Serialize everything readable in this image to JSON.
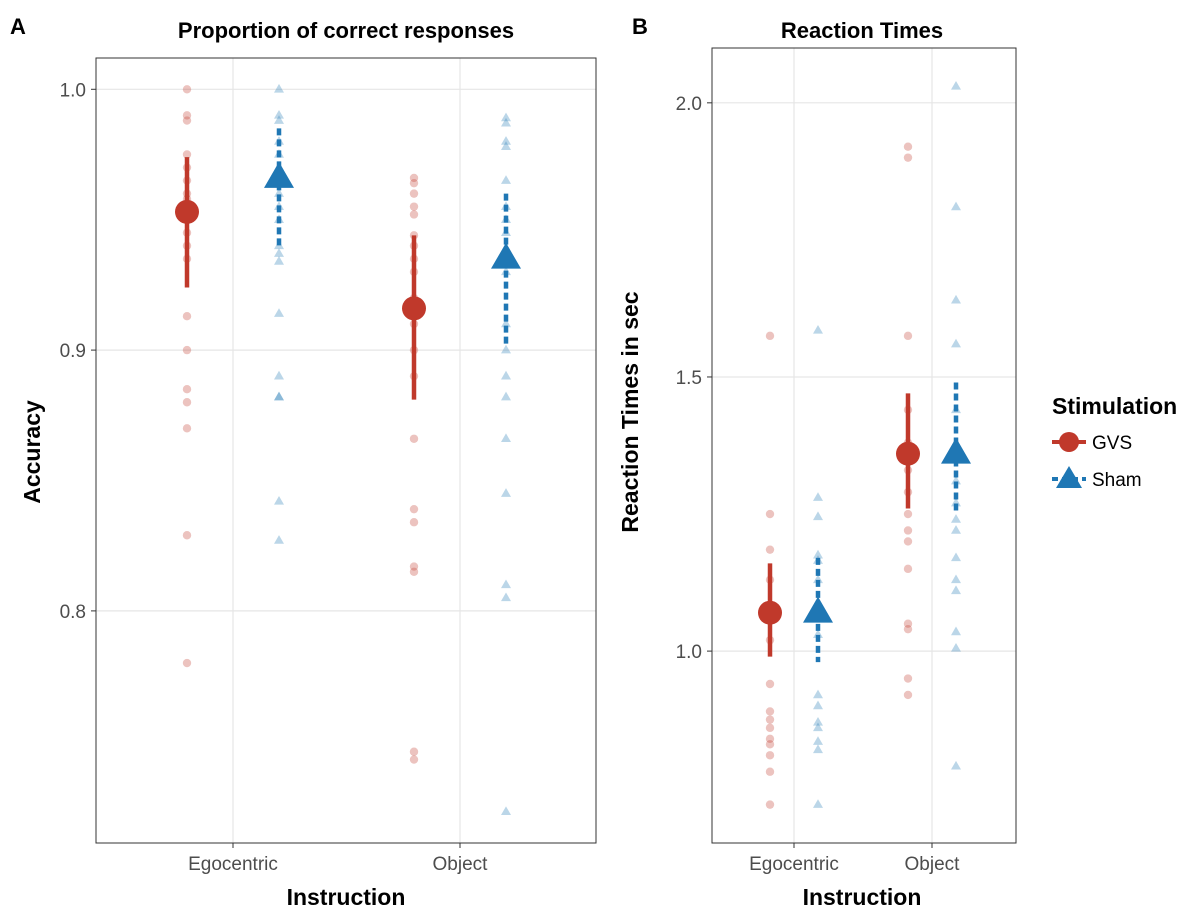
{
  "colors": {
    "gvs": "#c0392b",
    "sham": "#1f77b4",
    "grid": "#e6e6e6",
    "frame": "#333333"
  },
  "legend": {
    "title": "Stimulation",
    "items": [
      {
        "label": "GVS",
        "shape": "circle",
        "line": "solid"
      },
      {
        "label": "Sham",
        "shape": "triangle",
        "line": "dashed"
      }
    ]
  },
  "chart_data": [
    {
      "panel": "A",
      "title": "Proportion of correct responses",
      "type": "scatter",
      "xlabel": "Instruction",
      "ylabel": "Accuracy",
      "categories": [
        "Egocentric",
        "Object"
      ],
      "ylim": [
        0.711,
        1.012
      ],
      "yticks": [
        0.8,
        0.9,
        1.0
      ],
      "ytick_labels": [
        "0.8",
        "0.9",
        "1.0"
      ],
      "grid": true,
      "series": [
        {
          "name": "GVS",
          "summary": [
            {
              "category": "Egocentric",
              "mean": 0.953,
              "lower": 0.924,
              "upper": 0.974
            },
            {
              "category": "Object",
              "mean": 0.916,
              "lower": 0.881,
              "upper": 0.944
            }
          ],
          "points": [
            {
              "category": "Egocentric",
              "values": [
                1.0,
                0.99,
                0.988,
                0.975,
                0.97,
                0.965,
                0.96,
                0.958,
                0.955,
                0.95,
                0.945,
                0.94,
                0.935,
                0.913,
                0.9,
                0.885,
                0.88,
                0.87,
                0.829,
                0.78
              ]
            },
            {
              "category": "Object",
              "values": [
                0.966,
                0.964,
                0.96,
                0.955,
                0.952,
                0.944,
                0.94,
                0.935,
                0.93,
                0.92,
                0.91,
                0.9,
                0.89,
                0.866,
                0.839,
                0.834,
                0.817,
                0.815,
                0.746,
                0.743
              ]
            }
          ]
        },
        {
          "name": "Sham",
          "summary": [
            {
              "category": "Egocentric",
              "mean": 0.966,
              "lower": 0.94,
              "upper": 0.985
            },
            {
              "category": "Object",
              "mean": 0.935,
              "lower": 0.901,
              "upper": 0.96
            }
          ],
          "points": [
            {
              "category": "Egocentric",
              "values": [
                1.0,
                0.99,
                0.988,
                0.98,
                0.975,
                0.97,
                0.965,
                0.96,
                0.955,
                0.95,
                0.94,
                0.937,
                0.934,
                0.914,
                0.89,
                0.882,
                0.882,
                0.842,
                0.827
              ]
            },
            {
              "category": "Object",
              "values": [
                0.989,
                0.987,
                0.98,
                0.978,
                0.965,
                0.955,
                0.95,
                0.945,
                0.93,
                0.91,
                0.9,
                0.89,
                0.882,
                0.866,
                0.845,
                0.81,
                0.805,
                0.723
              ]
            }
          ]
        }
      ]
    },
    {
      "panel": "B",
      "title": "Reaction Times",
      "type": "scatter",
      "xlabel": "Instruction",
      "ylabel": "Reaction Times in sec",
      "categories": [
        "Egocentric",
        "Object"
      ],
      "ylim": [
        0.65,
        2.1
      ],
      "yticks": [
        1.0,
        1.5,
        2.0
      ],
      "ytick_labels": [
        "1.0",
        "1.5",
        "2.0"
      ],
      "grid": true,
      "series": [
        {
          "name": "GVS",
          "summary": [
            {
              "category": "Egocentric",
              "mean": 1.07,
              "lower": 0.99,
              "upper": 1.16
            },
            {
              "category": "Object",
              "mean": 1.36,
              "lower": 1.26,
              "upper": 1.47
            }
          ],
          "points": [
            {
              "category": "Egocentric",
              "values": [
                1.575,
                1.25,
                1.185,
                1.13,
                1.07,
                1.02,
                0.94,
                0.89,
                0.875,
                0.86,
                0.84,
                0.83,
                0.81,
                0.78,
                0.72
              ]
            },
            {
              "category": "Object",
              "values": [
                1.92,
                1.9,
                1.575,
                1.44,
                1.38,
                1.33,
                1.29,
                1.25,
                1.22,
                1.2,
                1.15,
                1.05,
                1.04,
                0.95,
                0.92
              ]
            }
          ]
        },
        {
          "name": "Sham",
          "summary": [
            {
              "category": "Egocentric",
              "mean": 1.07,
              "lower": 0.98,
              "upper": 1.17
            },
            {
              "category": "Object",
              "mean": 1.36,
              "lower": 1.25,
              "upper": 1.49
            }
          ],
          "points": [
            {
              "category": "Egocentric",
              "values": [
                1.585,
                1.28,
                1.245,
                1.175,
                1.165,
                1.13,
                1.08,
                1.03,
                0.92,
                0.9,
                0.87,
                0.86,
                0.835,
                0.82,
                0.72
              ]
            },
            {
              "category": "Object",
              "values": [
                2.03,
                1.81,
                1.64,
                1.56,
                1.44,
                1.31,
                1.27,
                1.24,
                1.22,
                1.17,
                1.13,
                1.11,
                1.035,
                1.005,
                0.79
              ]
            }
          ]
        }
      ]
    }
  ]
}
